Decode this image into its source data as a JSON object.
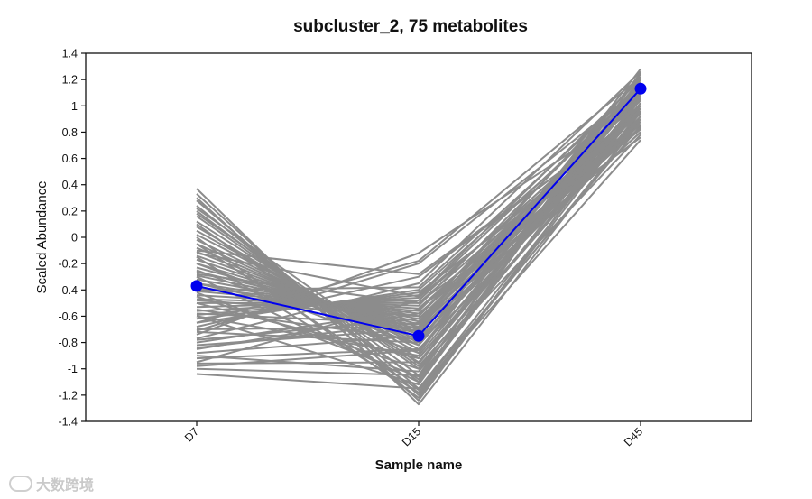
{
  "watermark": {
    "text": "大数跨境"
  },
  "chart_data": {
    "type": "line",
    "title": "subcluster_2, 75 metabolites",
    "xlabel": "Sample name",
    "ylabel": "Scaled Abundance",
    "categories": [
      "D7",
      "D15",
      "D45"
    ],
    "ylim": [
      -1.4,
      1.4
    ],
    "yticks": [
      -1.4,
      -1.2,
      -1,
      -0.8,
      -0.6,
      -0.4,
      -0.2,
      0,
      0.2,
      0.4,
      0.6,
      0.8,
      1,
      1.2,
      1.4
    ],
    "ytick_labels": [
      "-1.4",
      "-1.2",
      "-1",
      "-0.8",
      "-0.6",
      "-0.4",
      "-0.2",
      "0",
      "0.2",
      "0.4",
      "0.6",
      "0.8",
      "1",
      "1.2",
      "1.4"
    ],
    "grid": false,
    "colors": {
      "member": "#8c8c8c",
      "centroid": "#0000ee"
    },
    "centroid": {
      "values": [
        -0.37,
        -0.75,
        1.13
      ]
    },
    "members": [
      [
        0.37,
        -1.27,
        0.9
      ],
      [
        0.33,
        -1.2,
        0.95
      ],
      [
        0.28,
        -1.15,
        0.85
      ],
      [
        0.24,
        -1.1,
        1.05
      ],
      [
        0.2,
        -1.05,
        1.2
      ],
      [
        0.16,
        -1.0,
        0.78
      ],
      [
        0.12,
        -0.95,
        1.1
      ],
      [
        0.08,
        -0.92,
        0.98
      ],
      [
        0.05,
        -0.88,
        1.25
      ],
      [
        0.02,
        -0.85,
        0.88
      ],
      [
        -0.02,
        -0.82,
        1.02
      ],
      [
        -0.05,
        -0.8,
        0.92
      ],
      [
        -0.08,
        -0.78,
        1.15
      ],
      [
        -0.11,
        -0.76,
        0.8
      ],
      [
        -0.14,
        -0.74,
        1.08
      ],
      [
        -0.17,
        -0.72,
        0.96
      ],
      [
        -0.2,
        -0.7,
        1.18
      ],
      [
        -0.23,
        -0.68,
        0.86
      ],
      [
        -0.26,
        -0.66,
        1.0
      ],
      [
        -0.29,
        -0.64,
        1.12
      ],
      [
        -0.32,
        -0.62,
        0.9
      ],
      [
        -0.35,
        -0.6,
        1.22
      ],
      [
        -0.38,
        -0.58,
        0.83
      ],
      [
        -0.41,
        -0.56,
        1.06
      ],
      [
        -0.44,
        -0.54,
        0.94
      ],
      [
        -0.47,
        -0.52,
        1.16
      ],
      [
        -0.5,
        -0.5,
        0.76
      ],
      [
        -0.53,
        -0.48,
        1.04
      ],
      [
        -0.56,
        -0.46,
        0.98
      ],
      [
        -0.59,
        -0.44,
        1.2
      ],
      [
        -0.62,
        -0.42,
        0.88
      ],
      [
        -0.65,
        -0.4,
        1.1
      ],
      [
        -0.68,
        -0.3,
        0.95
      ],
      [
        -0.71,
        -0.2,
        1.14
      ],
      [
        -0.74,
        -0.12,
        1.0
      ],
      [
        -0.77,
        -0.35,
        1.26
      ],
      [
        -0.8,
        -0.55,
        0.82
      ],
      [
        -0.84,
        -0.65,
        1.08
      ],
      [
        -0.88,
        -0.75,
        1.18
      ],
      [
        -0.92,
        -0.85,
        0.92
      ],
      [
        -0.96,
        -0.95,
        1.02
      ],
      [
        -1.0,
        -1.05,
        1.24
      ],
      [
        -1.04,
        -1.15,
        0.96
      ],
      [
        -0.6,
        -0.9,
        1.12
      ],
      [
        -0.45,
        -1.0,
        1.05
      ],
      [
        -0.3,
        -1.1,
        1.2
      ],
      [
        -0.15,
        -1.18,
        0.88
      ],
      [
        0.0,
        -1.22,
        1.0
      ],
      [
        0.1,
        -1.08,
        1.15
      ],
      [
        0.18,
        -0.98,
        0.9
      ],
      [
        -0.25,
        -0.88,
        1.28
      ],
      [
        -0.55,
        -0.78,
        0.98
      ],
      [
        -0.7,
        -0.68,
        1.1
      ],
      [
        -0.85,
        -0.58,
        0.86
      ],
      [
        -0.95,
        -0.48,
        1.04
      ],
      [
        -0.4,
        -0.38,
        1.16
      ],
      [
        -0.1,
        -0.28,
        0.94
      ],
      [
        -0.65,
        -0.18,
        1.22
      ],
      [
        -0.78,
        -0.62,
        1.0
      ],
      [
        -0.35,
        -0.72,
        0.8
      ],
      [
        -0.2,
        -0.82,
        1.12
      ],
      [
        -0.5,
        -0.92,
        1.06
      ],
      [
        -0.9,
        -1.02,
        0.92
      ],
      [
        -0.6,
        -1.12,
        1.18
      ],
      [
        0.3,
        -1.24,
        1.02
      ],
      [
        -0.05,
        -1.16,
        0.74
      ],
      [
        -0.72,
        -0.8,
        1.24
      ],
      [
        -0.82,
        -0.7,
        0.84
      ],
      [
        -0.48,
        -0.6,
        1.08
      ],
      [
        -0.28,
        -0.5,
        0.96
      ],
      [
        -0.12,
        -0.45,
        1.14
      ],
      [
        -0.58,
        -0.66,
        0.9
      ],
      [
        -0.98,
        -0.86,
        1.2
      ],
      [
        0.22,
        -0.96,
        1.06
      ],
      [
        -0.42,
        -1.06,
        0.98
      ]
    ]
  }
}
